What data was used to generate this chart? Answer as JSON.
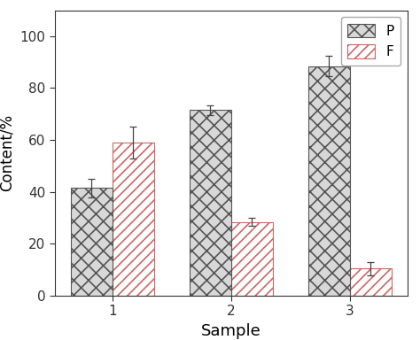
{
  "categories": [
    "1",
    "2",
    "3"
  ],
  "P_values": [
    41.5,
    71.5,
    88.5
  ],
  "F_values": [
    59.0,
    28.5,
    10.5
  ],
  "P_errors": [
    3.5,
    2.0,
    4.0
  ],
  "F_errors": [
    6.0,
    1.5,
    2.5
  ],
  "P_color": "#d8d8d8",
  "F_color": "#ffffff",
  "P_hatch": "xx",
  "F_hatch": "///",
  "P_edge_color": "#555555",
  "F_edge_color": "#cc6666",
  "F_hatch_color": "#dd8888",
  "bar_width": 0.35,
  "xlabel": "Sample",
  "ylabel": "Content/%",
  "ylim": [
    0,
    110
  ],
  "yticks": [
    0,
    20,
    40,
    60,
    80,
    100
  ],
  "legend_labels": [
    "P",
    "F"
  ],
  "legend_loc": "upper right",
  "background_color": "#ffffff",
  "xlabel_fontsize": 13,
  "ylabel_fontsize": 12,
  "tick_fontsize": 11,
  "legend_fontsize": 11
}
